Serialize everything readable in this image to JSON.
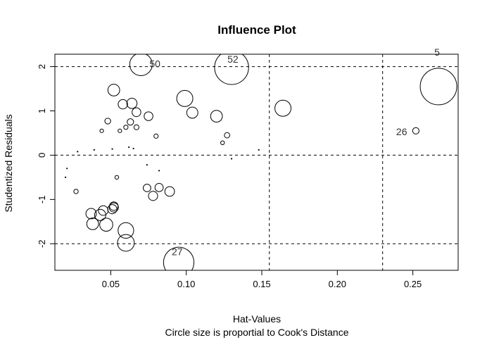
{
  "chart_data": {
    "type": "scatter",
    "title": "Influence Plot",
    "xlabel": "Hat-Values",
    "sublabel": "Circle size is proportial to Cook's Distance",
    "ylabel": "Studentized Residuals",
    "xlim": [
      0.013,
      0.28
    ],
    "ylim": [
      -2.6,
      2.28
    ],
    "x_ticks": [
      0.05,
      0.1,
      0.15,
      0.2,
      0.25
    ],
    "x_tick_labels": [
      "0.05",
      "0.10",
      "0.15",
      "0.20",
      "0.25"
    ],
    "y_ticks": [
      -2,
      -1,
      0,
      1,
      2
    ],
    "y_tick_labels": [
      "-2",
      "-1",
      "0",
      "1",
      "2"
    ],
    "reference_lines": {
      "horizontal": [
        -2,
        0,
        2
      ],
      "vertical": [
        0.155,
        0.23
      ],
      "style": "dashed"
    },
    "grid": false,
    "points": [
      {
        "x": 0.02,
        "y": -0.5,
        "cook": 2e-05
      },
      {
        "x": 0.021,
        "y": -0.3,
        "cook": 1e-05
      },
      {
        "x": 0.028,
        "y": 0.08,
        "cook": 5e-06
      },
      {
        "x": 0.027,
        "y": -0.82,
        "cook": 0.0022
      },
      {
        "x": 0.039,
        "y": 0.12,
        "cook": 5e-06
      },
      {
        "x": 0.044,
        "y": 0.55,
        "cook": 0.0015
      },
      {
        "x": 0.048,
        "y": 0.77,
        "cook": 0.0038
      },
      {
        "x": 0.051,
        "y": 0.14,
        "cook": 5e-06
      },
      {
        "x": 0.052,
        "y": 1.47,
        "cook": 0.0154
      },
      {
        "x": 0.054,
        "y": -0.5,
        "cook": 0.0016
      },
      {
        "x": 0.056,
        "y": 0.55,
        "cook": 0.0015
      },
      {
        "x": 0.06,
        "y": 0.63,
        "cook": 0.0021
      },
      {
        "x": 0.058,
        "y": 1.15,
        "cook": 0.0099
      },
      {
        "x": 0.062,
        "y": 0.18,
        "cook": 2e-05
      },
      {
        "x": 0.065,
        "y": 0.15,
        "cook": 1e-05
      },
      {
        "x": 0.063,
        "y": 0.75,
        "cook": 0.0046
      },
      {
        "x": 0.064,
        "y": 1.17,
        "cook": 0.0117
      },
      {
        "x": 0.067,
        "y": 0.97,
        "cook": 0.0086
      },
      {
        "x": 0.067,
        "y": 0.63,
        "cook": 0.0028
      },
      {
        "x": 0.07,
        "y": 2.05,
        "cook": 0.0563,
        "label": "50"
      },
      {
        "x": 0.074,
        "y": -0.22,
        "cook": 3e-05
      },
      {
        "x": 0.074,
        "y": -0.74,
        "cook": 0.0064
      },
      {
        "x": 0.075,
        "y": 0.88,
        "cook": 0.0086
      },
      {
        "x": 0.078,
        "y": -0.92,
        "cook": 0.0095
      },
      {
        "x": 0.08,
        "y": 0.43,
        "cook": 0.0021
      },
      {
        "x": 0.082,
        "y": -0.35,
        "cook": 8e-05
      },
      {
        "x": 0.082,
        "y": -0.73,
        "cook": 0.0076
      },
      {
        "x": 0.089,
        "y": -0.82,
        "cook": 0.0104
      },
      {
        "x": 0.099,
        "y": 1.28,
        "cook": 0.029
      },
      {
        "x": 0.104,
        "y": 0.96,
        "cook": 0.0139
      },
      {
        "x": 0.095,
        "y": -2.42,
        "cook": 0.1026,
        "label": "27"
      },
      {
        "x": 0.12,
        "y": 0.88,
        "cook": 0.0154
      },
      {
        "x": 0.124,
        "y": 0.28,
        "cook": 0.0016
      },
      {
        "x": 0.127,
        "y": 0.45,
        "cook": 0.0032
      },
      {
        "x": 0.13,
        "y": -0.08,
        "cook": 5e-06
      },
      {
        "x": 0.13,
        "y": 1.98,
        "cook": 0.1285,
        "label": "52"
      },
      {
        "x": 0.148,
        "y": 0.12,
        "cook": 8e-05
      },
      {
        "x": 0.164,
        "y": 1.06,
        "cook": 0.029
      },
      {
        "x": 0.037,
        "y": -1.32,
        "cook": 0.0122
      },
      {
        "x": 0.038,
        "y": -1.55,
        "cook": 0.0154
      },
      {
        "x": 0.043,
        "y": -1.35,
        "cook": 0.014
      },
      {
        "x": 0.045,
        "y": -1.25,
        "cook": 0.0104
      },
      {
        "x": 0.047,
        "y": -1.57,
        "cook": 0.019
      },
      {
        "x": 0.051,
        "y": -1.22,
        "cook": 0.0095
      },
      {
        "x": 0.052,
        "y": -1.18,
        "cook": 0.0095
      },
      {
        "x": 0.052,
        "y": -1.15,
        "cook": 0.0081
      },
      {
        "x": 0.06,
        "y": -1.7,
        "cook": 0.0271
      },
      {
        "x": 0.06,
        "y": -1.98,
        "cook": 0.0313
      },
      {
        "x": 0.252,
        "y": 0.55,
        "cook": 0.0046,
        "label": "26"
      },
      {
        "x": 0.267,
        "y": 1.55,
        "cook": 0.1488,
        "label": "5"
      }
    ]
  }
}
